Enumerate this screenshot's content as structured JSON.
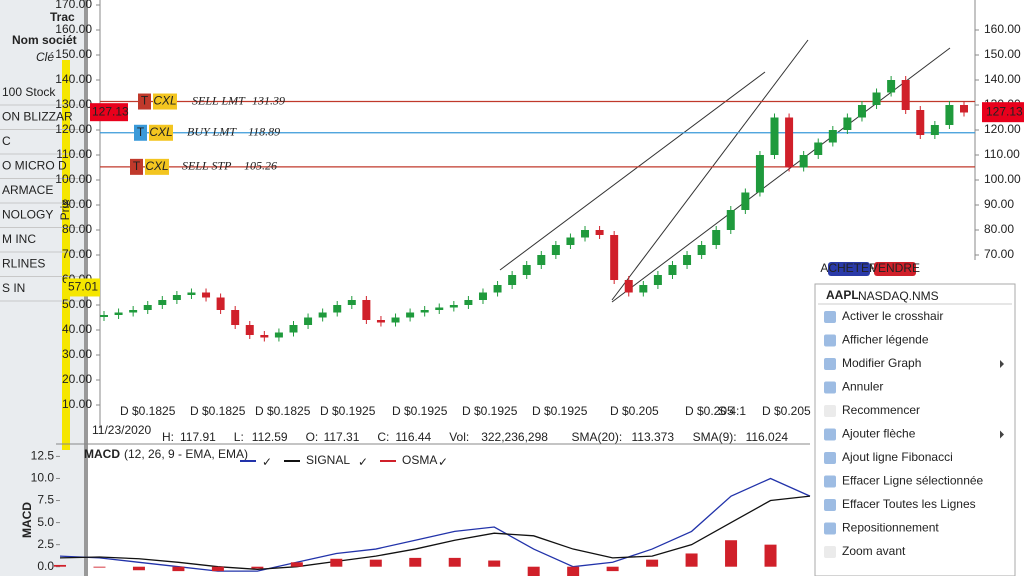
{
  "left_panel": {
    "title": "Trac",
    "column": "Nom sociét",
    "key": "Clé",
    "rows": [
      "100 Stock",
      "ON BLIZZAR",
      "C",
      "O MICRO D",
      "ARMACE",
      "NOLOGY",
      "M INC",
      "RLINES",
      "S IN"
    ]
  },
  "chart_data": [
    {
      "type": "candlestick",
      "y_label": "Prix",
      "values": [
        46,
        47,
        48,
        50,
        52,
        54,
        55,
        53,
        48,
        42,
        38,
        37,
        39,
        42,
        45,
        47,
        50,
        52,
        44,
        43,
        45,
        47,
        48,
        49,
        50,
        52,
        55,
        58,
        62,
        66,
        70,
        74,
        77,
        80,
        78,
        60,
        55,
        58,
        62,
        66,
        70,
        74,
        80,
        88,
        95,
        110,
        125,
        105,
        110,
        115,
        120,
        125,
        130,
        135,
        140,
        128,
        118,
        122,
        130,
        127
      ],
      "color_up": "#1f9a3c",
      "color_down": "#d0202a",
      "ylim": [
        2,
        172
      ],
      "yticks": [
        {
          "value": 170,
          "label": "170.00"
        },
        {
          "value": 160,
          "label": "160.00"
        },
        {
          "value": 150,
          "label": "150.00"
        },
        {
          "value": 140,
          "label": "140.00"
        },
        {
          "value": 130,
          "label": "130.00"
        },
        {
          "value": 120,
          "label": "120.00"
        },
        {
          "value": 110,
          "label": "110.00"
        },
        {
          "value": 100,
          "label": "100.00"
        },
        {
          "value": 90,
          "label": "90.00"
        },
        {
          "value": 80,
          "label": "80.00"
        },
        {
          "value": 70,
          "label": "70.00"
        },
        {
          "value": 60,
          "label": "60.00"
        },
        {
          "value": 50,
          "label": "50.00"
        },
        {
          "value": 40,
          "label": "40.00"
        },
        {
          "value": 30,
          "label": "30.00"
        },
        {
          "value": 20,
          "label": "20.00"
        },
        {
          "value": 10,
          "label": "10.00"
        }
      ],
      "y2lim": [
        2,
        172
      ],
      "y2ticks": [
        {
          "value": 160,
          "label": "160.00"
        },
        {
          "value": 150,
          "label": "150.00"
        },
        {
          "value": 140,
          "label": "140.00"
        },
        {
          "value": 130,
          "label": "130.00"
        },
        {
          "value": 120,
          "label": "120.00"
        },
        {
          "value": 110,
          "label": "110.00"
        },
        {
          "value": 100,
          "label": "100.00"
        },
        {
          "value": 90,
          "label": "90.00"
        },
        {
          "value": 80,
          "label": "80.00"
        },
        {
          "value": 70,
          "label": "70.00"
        }
      ],
      "orders": [
        {
          "tag": "T",
          "cancel": "CXL",
          "side": "SELL LMT",
          "price": 131.39,
          "color": "#c0392b"
        },
        {
          "tag": "T",
          "cancel": "CXL",
          "side": "BUY LMT",
          "price": 118.89,
          "color": "#3a9ad9"
        },
        {
          "tag": "T",
          "cancel": "CXL",
          "side": "SELL STP",
          "price": 105.26,
          "color": "#c0392b"
        }
      ],
      "last_price": 127.13,
      "cursor_price": 57.01,
      "dividends": [
        "D $0.1825",
        "D $0.1825",
        "D $0.1825",
        "D $0.1925",
        "D $0.1925",
        "D $0.1925",
        "D $0.1925",
        "D $0.205",
        "D $0.205",
        "S 4:1",
        "D $0.205"
      ],
      "info": {
        "date": "11/23/2020",
        "fields": [
          {
            "label": "H:",
            "value": "117.91"
          },
          {
            "label": "L:",
            "value": "112.59"
          },
          {
            "label": "O:",
            "value": "117.31"
          },
          {
            "label": "C:",
            "value": "116.44"
          },
          {
            "label": "Vol:",
            "value": "322,236,298"
          },
          {
            "label": "SMA(20):",
            "value": "113.373"
          },
          {
            "label": "SMA(9):",
            "value": "116.024"
          }
        ]
      },
      "buttons": [
        "ACHETER",
        "VENDRE"
      ]
    },
    {
      "type": "line",
      "title": "MACD",
      "params": "(12, 26, 9 - EMA, EMA)",
      "y_label": "MACD",
      "ylim": [
        -0.6,
        13
      ],
      "yticks": [
        12.5,
        {
          "value": 10,
          "label": "10.0"
        },
        7.5,
        {
          "value": 5,
          "label": "5.0"
        },
        2.5,
        {
          "value": 0,
          "label": "0.0"
        }
      ],
      "series": [
        {
          "color": "#2233aa",
          "values": [
            1.2,
            1.0,
            0.5,
            0,
            -0.5,
            -0.5,
            0.5,
            1.5,
            2.0,
            3.0,
            4.0,
            4.5,
            2.0,
            0,
            0.5,
            2,
            4,
            8,
            10,
            8
          ]
        },
        {
          "name": "SIGNAL",
          "color": "#111111",
          "values": [
            1.0,
            1.1,
            0.9,
            0.5,
            0,
            -0.3,
            0,
            0.6,
            1.2,
            2,
            3,
            3.8,
            3.5,
            2,
            1,
            1.2,
            2.5,
            5,
            7.5,
            8
          ]
        },
        {
          "name": "OSMA",
          "color": "#d0202a",
          "values": [
            0.2,
            -0.1,
            -0.4,
            -0.5,
            -0.5,
            -0.2,
            0.5,
            0.9,
            0.8,
            1,
            1,
            0.7,
            -1.5,
            -2,
            -0.5,
            0.8,
            1.5,
            3,
            2.5,
            0
          ]
        }
      ]
    }
  ],
  "context_menu": {
    "symbol": "AAPL",
    "exchange": "NASDAQ.NMS",
    "items": [
      {
        "text": "Activer le crosshair"
      },
      {
        "text": "Afficher légende"
      },
      {
        "text": "Modifier Graph",
        "submenu": true
      },
      {
        "text": "Annuler"
      },
      {
        "text": "Recommencer",
        "disabled": true
      },
      {
        "text": "Ajouter flèche",
        "submenu": true
      },
      {
        "text": "Ajout ligne Fibonacci"
      },
      {
        "text": "Effacer Ligne sélectionnée"
      },
      {
        "text": "Effacer Toutes les Lignes"
      },
      {
        "text": "Repositionnement"
      },
      {
        "text": "Zoom avant",
        "disabled": true
      }
    ]
  }
}
